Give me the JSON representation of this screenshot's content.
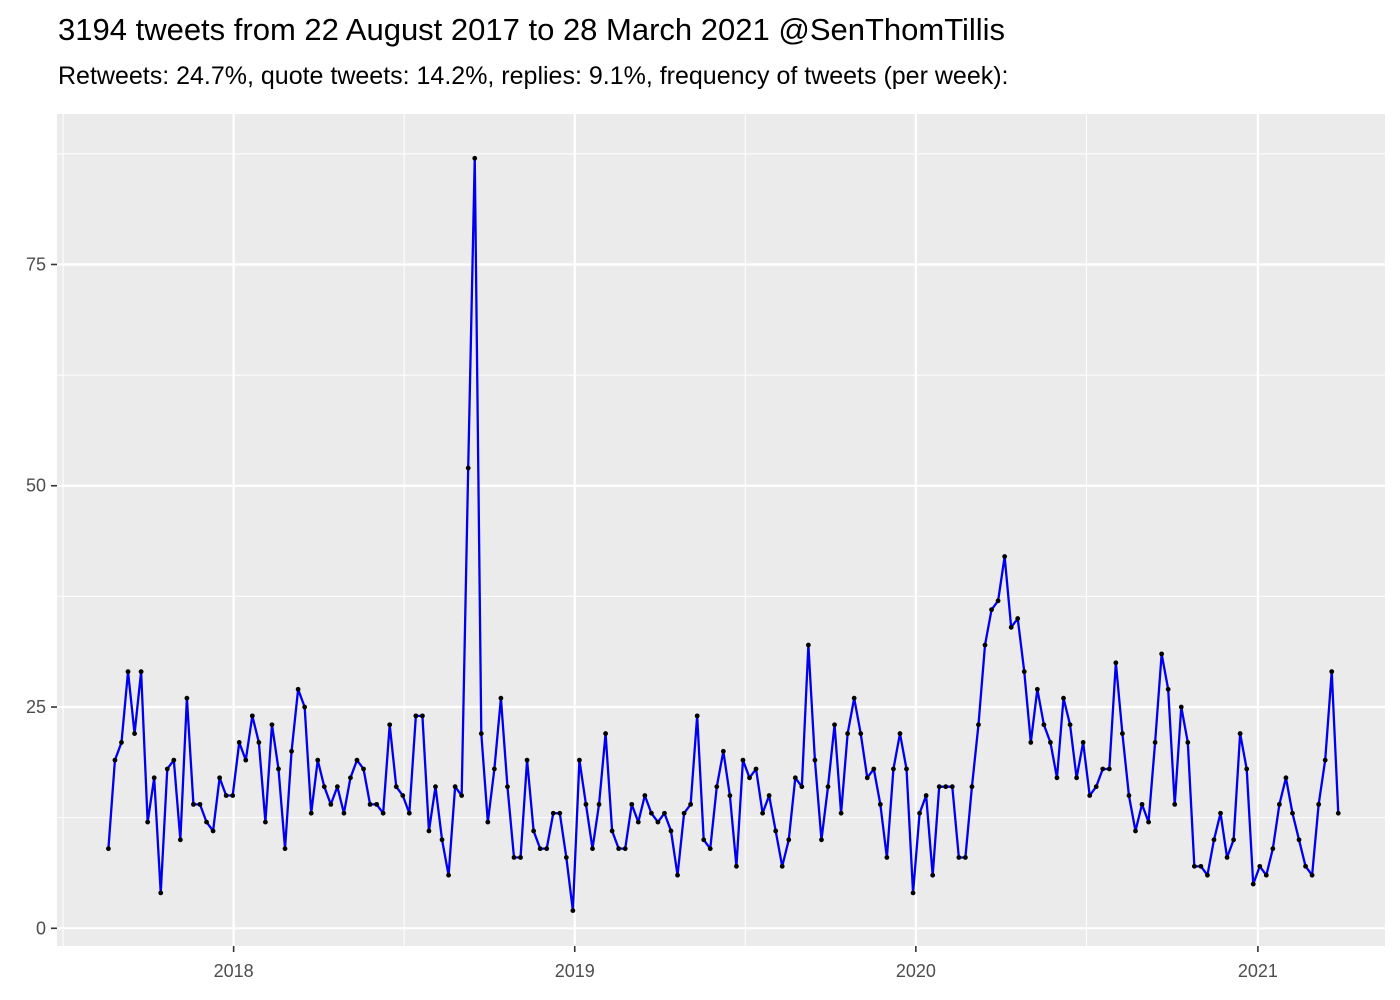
{
  "chart_data": {
    "type": "line",
    "title": "3194 tweets from 22 August 2017 to 28 March 2021 @SenThomTillis",
    "subtitle": "Retweets: 24.7%, quote tweets: 14.2%, replies: 9.1%, frequency of tweets (per week):",
    "xlabel": "",
    "ylabel": "",
    "x_start": "2017-08-20",
    "x_step_days": 7,
    "xlim": [
      "2017-06-26",
      "2021-05-17"
    ],
    "ylim": [
      -2,
      92
    ],
    "x_ticks": [
      {
        "date": "2018-01-01",
        "label": "2018"
      },
      {
        "date": "2019-01-01",
        "label": "2019"
      },
      {
        "date": "2020-01-01",
        "label": "2020"
      },
      {
        "date": "2021-01-01",
        "label": "2021"
      }
    ],
    "y_ticks": [
      0,
      25,
      50,
      75
    ],
    "grid": true,
    "line_color": "#0000ee",
    "point_color": "#000000",
    "panel_background": "#ebebeb",
    "values": [
      9,
      19,
      21,
      29,
      22,
      29,
      12,
      17,
      4,
      18,
      19,
      10,
      26,
      14,
      14,
      12,
      11,
      17,
      15,
      15,
      21,
      19,
      24,
      21,
      12,
      23,
      18,
      9,
      20,
      27,
      25,
      13,
      19,
      16,
      14,
      16,
      13,
      17,
      19,
      18,
      14,
      14,
      13,
      23,
      16,
      15,
      13,
      24,
      24,
      11,
      16,
      10,
      6,
      16,
      15,
      52,
      87,
      22,
      12,
      18,
      26,
      16,
      8,
      8,
      19,
      11,
      9,
      9,
      13,
      13,
      8,
      2,
      19,
      14,
      9,
      14,
      22,
      11,
      9,
      9,
      14,
      12,
      15,
      13,
      12,
      13,
      11,
      6,
      13,
      14,
      24,
      10,
      9,
      16,
      20,
      15,
      7,
      19,
      17,
      18,
      13,
      15,
      11,
      7,
      10,
      17,
      16,
      32,
      19,
      10,
      16,
      23,
      13,
      22,
      26,
      22,
      17,
      18,
      14,
      8,
      18,
      22,
      18,
      4,
      13,
      15,
      6,
      16,
      16,
      16,
      8,
      8,
      16,
      23,
      32,
      36,
      37,
      42,
      34,
      35,
      29,
      21,
      27,
      23,
      21,
      17,
      26,
      23,
      17,
      21,
      15,
      16,
      18,
      18,
      30,
      22,
      15,
      11,
      14,
      12,
      21,
      31,
      27,
      14,
      25,
      21,
      7,
      7,
      6,
      10,
      13,
      8,
      10,
      22,
      18,
      5,
      7,
      6,
      9,
      14,
      17,
      13,
      10,
      7,
      6,
      14,
      19,
      29,
      13
    ]
  }
}
